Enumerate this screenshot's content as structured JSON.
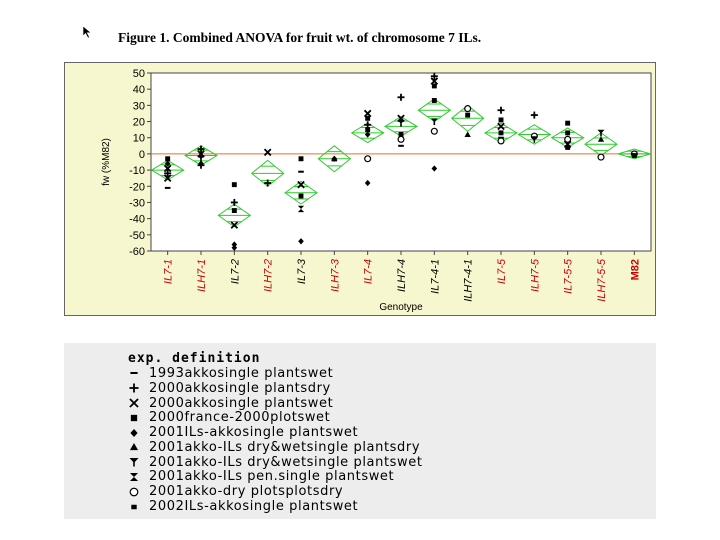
{
  "figure_title": "Figure 1. Combined ANOVA for fruit wt. of  chromosome 7 ILs.",
  "legend": {
    "title": "exp. definition",
    "items": [
      {
        "label": "1993akkosingle plantswet",
        "symbol": "dash"
      },
      {
        "label": "2000akkosingle plantsdry",
        "symbol": "plus"
      },
      {
        "label": "2000akkosingle plantswet",
        "symbol": "cross"
      },
      {
        "label": "2000france-2000plotswet",
        "symbol": "square"
      },
      {
        "label": "2001ILs-akkosingle plantswet",
        "symbol": "diamond"
      },
      {
        "label": "2001akko-ILs dry&wetsingle plantsdry",
        "symbol": "triangle"
      },
      {
        "label": "2001akko-ILs dry&wetsingle plantswet",
        "symbol": "y-shape"
      },
      {
        "label": "2001akko-ILs pen.single plantswet",
        "symbol": "hourglass"
      },
      {
        "label": "2001akko-dry plotsplotsdry",
        "symbol": "circle"
      },
      {
        "label": "2002ILs-akkosingle plantswet",
        "symbol": "small-square"
      }
    ]
  },
  "chart_data": {
    "type": "scatter",
    "subtype": "means-diamonds",
    "title": "",
    "xlabel": "Genotype",
    "ylabel": "fw (%M82)",
    "ylim": [
      -60,
      50
    ],
    "yticks": [
      -60,
      -50,
      -40,
      -30,
      -20,
      -10,
      0,
      10,
      20,
      30,
      40,
      50
    ],
    "reference_line": 0,
    "grid": false,
    "categories": [
      "IL7-1",
      "ILH7-1",
      "IL7-2",
      "ILH7-2",
      "IL7-3",
      "ILH7-3",
      "IL7-4",
      "ILH7-4",
      "IL7-4-1",
      "ILH7-4-1",
      "IL7-5",
      "ILH7-5",
      "IL7-5-5",
      "ILH7-5-5",
      "M82"
    ],
    "category_colors": [
      "#cc0000",
      "#cc0000",
      "#000000",
      "#cc0000",
      "#000000",
      "#cc0000",
      "#cc0000",
      "#000000",
      "#000000",
      "#000000",
      "#cc0000",
      "#cc0000",
      "#cc0000",
      "#cc0000",
      "#cc0000"
    ],
    "bold_categories": [
      "M82"
    ],
    "means": [
      -10,
      -1,
      -38,
      -12,
      -24,
      -3,
      13,
      17,
      27,
      22,
      13,
      12,
      10,
      6,
      0
    ],
    "ci_halfwidth": [
      6,
      6,
      7,
      8,
      7,
      8,
      6,
      6,
      7,
      8,
      6,
      6,
      6,
      7,
      3
    ],
    "points": [
      {
        "cat": "IL7-1",
        "y": -3,
        "symbol": "square"
      },
      {
        "cat": "IL7-1",
        "y": -6,
        "symbol": "diamond"
      },
      {
        "cat": "IL7-1",
        "y": -9,
        "symbol": "cross"
      },
      {
        "cat": "IL7-1",
        "y": -12,
        "symbol": "plus"
      },
      {
        "cat": "IL7-1",
        "y": -15,
        "symbol": "cross"
      },
      {
        "cat": "IL7-1",
        "y": -21,
        "symbol": "dash"
      },
      {
        "cat": "ILH7-1",
        "y": 3,
        "symbol": "plus"
      },
      {
        "cat": "ILH7-1",
        "y": 0,
        "symbol": "cross"
      },
      {
        "cat": "ILH7-1",
        "y": -3,
        "symbol": "y-shape"
      },
      {
        "cat": "ILH7-1",
        "y": -6,
        "symbol": "diamond"
      },
      {
        "cat": "ILH7-1",
        "y": -7,
        "symbol": "plus"
      },
      {
        "cat": "IL7-2",
        "y": -19,
        "symbol": "square"
      },
      {
        "cat": "IL7-2",
        "y": -30,
        "symbol": "plus"
      },
      {
        "cat": "IL7-2",
        "y": -35,
        "symbol": "square"
      },
      {
        "cat": "IL7-2",
        "y": -44,
        "symbol": "cross"
      },
      {
        "cat": "IL7-2",
        "y": -56,
        "symbol": "diamond"
      },
      {
        "cat": "IL7-2",
        "y": -58,
        "symbol": "diamond"
      },
      {
        "cat": "ILH7-2",
        "y": 1,
        "symbol": "cross"
      },
      {
        "cat": "ILH7-2",
        "y": -18,
        "symbol": "plus"
      },
      {
        "cat": "IL7-3",
        "y": -3,
        "symbol": "square"
      },
      {
        "cat": "IL7-3",
        "y": -11,
        "symbol": "dash"
      },
      {
        "cat": "IL7-3",
        "y": -19,
        "symbol": "cross"
      },
      {
        "cat": "IL7-3",
        "y": -26,
        "symbol": "square"
      },
      {
        "cat": "IL7-3",
        "y": -34,
        "symbol": "hourglass"
      },
      {
        "cat": "IL7-3",
        "y": -54,
        "symbol": "diamond"
      },
      {
        "cat": "ILH7-3",
        "y": -3,
        "symbol": "diamond"
      },
      {
        "cat": "ILH7-3",
        "y": -4,
        "symbol": "dash"
      },
      {
        "cat": "IL7-4",
        "y": 25,
        "symbol": "cross"
      },
      {
        "cat": "IL7-4",
        "y": 22,
        "symbol": "square"
      },
      {
        "cat": "IL7-4",
        "y": 18,
        "symbol": "plus"
      },
      {
        "cat": "IL7-4",
        "y": 15,
        "symbol": "square"
      },
      {
        "cat": "IL7-4",
        "y": 12,
        "symbol": "diamond"
      },
      {
        "cat": "IL7-4",
        "y": -3,
        "symbol": "circle"
      },
      {
        "cat": "IL7-4",
        "y": -18,
        "symbol": "diamond"
      },
      {
        "cat": "ILH7-4",
        "y": 35,
        "symbol": "plus"
      },
      {
        "cat": "ILH7-4",
        "y": 22,
        "symbol": "cross"
      },
      {
        "cat": "ILH7-4",
        "y": 19,
        "symbol": "y-shape"
      },
      {
        "cat": "ILH7-4",
        "y": 12,
        "symbol": "square"
      },
      {
        "cat": "ILH7-4",
        "y": 9,
        "symbol": "circle"
      },
      {
        "cat": "ILH7-4",
        "y": 5,
        "symbol": "dash"
      },
      {
        "cat": "IL7-4-1",
        "y": 48,
        "symbol": "plus"
      },
      {
        "cat": "IL7-4-1",
        "y": 45,
        "symbol": "cross"
      },
      {
        "cat": "IL7-4-1",
        "y": 42,
        "symbol": "square"
      },
      {
        "cat": "IL7-4-1",
        "y": 33,
        "symbol": "square"
      },
      {
        "cat": "IL7-4-1",
        "y": 20,
        "symbol": "y-shape"
      },
      {
        "cat": "IL7-4-1",
        "y": 14,
        "symbol": "circle"
      },
      {
        "cat": "IL7-4-1",
        "y": -9,
        "symbol": "diamond"
      },
      {
        "cat": "ILH7-4-1",
        "y": 28,
        "symbol": "circle"
      },
      {
        "cat": "ILH7-4-1",
        "y": 24,
        "symbol": "square"
      },
      {
        "cat": "ILH7-4-1",
        "y": 12,
        "symbol": "triangle"
      },
      {
        "cat": "IL7-5",
        "y": 27,
        "symbol": "plus"
      },
      {
        "cat": "IL7-5",
        "y": 21,
        "symbol": "square"
      },
      {
        "cat": "IL7-5",
        "y": 17,
        "symbol": "cross"
      },
      {
        "cat": "IL7-5",
        "y": 13,
        "symbol": "square"
      },
      {
        "cat": "IL7-5",
        "y": 10,
        "symbol": "dash"
      },
      {
        "cat": "IL7-5",
        "y": 8,
        "symbol": "circle"
      },
      {
        "cat": "ILH7-5",
        "y": 24,
        "symbol": "plus"
      },
      {
        "cat": "ILH7-5",
        "y": 11,
        "symbol": "circle"
      },
      {
        "cat": "ILH7-5",
        "y": 9,
        "symbol": "y-shape"
      },
      {
        "cat": "IL7-5-5",
        "y": 19,
        "symbol": "square"
      },
      {
        "cat": "IL7-5-5",
        "y": 13,
        "symbol": "square"
      },
      {
        "cat": "IL7-5-5",
        "y": 9,
        "symbol": "circle"
      },
      {
        "cat": "IL7-5-5",
        "y": 6,
        "symbol": "cross"
      },
      {
        "cat": "IL7-5-5",
        "y": 4,
        "symbol": "square"
      },
      {
        "cat": "ILH7-5-5",
        "y": 13,
        "symbol": "y-shape"
      },
      {
        "cat": "ILH7-5-5",
        "y": 9,
        "symbol": "triangle"
      },
      {
        "cat": "ILH7-5-5",
        "y": -2,
        "symbol": "circle"
      },
      {
        "cat": "M82",
        "y": 0,
        "symbol": "circle"
      },
      {
        "cat": "M82",
        "y": -1,
        "symbol": "square"
      }
    ]
  }
}
